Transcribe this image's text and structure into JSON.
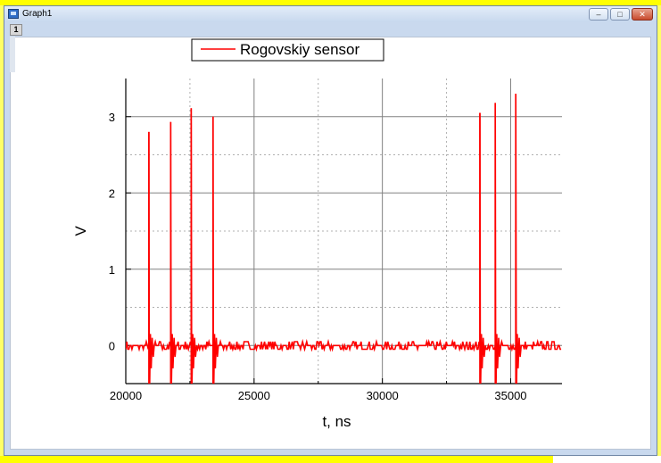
{
  "window": {
    "title": "Graph1",
    "layer_label": "1",
    "buttons": {
      "minimize": "–",
      "maximize": "□",
      "close": "✕"
    }
  },
  "colors": {
    "series": "#ff0000",
    "grid": "#b0b0b0",
    "major_grid": "#808080"
  },
  "chart_data": {
    "type": "line",
    "title": "",
    "xlabel": "t, ns",
    "ylabel": "V",
    "xlim": [
      20000,
      37000
    ],
    "ylim": [
      -0.5,
      3.5
    ],
    "xticks": [
      20000,
      25000,
      30000,
      35000
    ],
    "yticks": [
      0,
      1,
      2,
      3
    ],
    "grid": true,
    "legend_position": "top-left",
    "series": [
      {
        "name": "Rogovskiy sensor",
        "baseline": 0,
        "noise": 0.05,
        "spikes": [
          {
            "x": 20900,
            "peak": 2.8,
            "min": -0.5
          },
          {
            "x": 21750,
            "peak": 2.93,
            "min": -0.5
          },
          {
            "x": 22550,
            "peak": 3.11,
            "min": -0.5
          },
          {
            "x": 23400,
            "peak": 3.0,
            "min": -0.5
          },
          {
            "x": 33800,
            "peak": 3.05,
            "min": -0.5
          },
          {
            "x": 34400,
            "peak": 3.18,
            "min": -0.5
          },
          {
            "x": 35200,
            "peak": 3.3,
            "min": -0.5
          }
        ]
      }
    ]
  }
}
